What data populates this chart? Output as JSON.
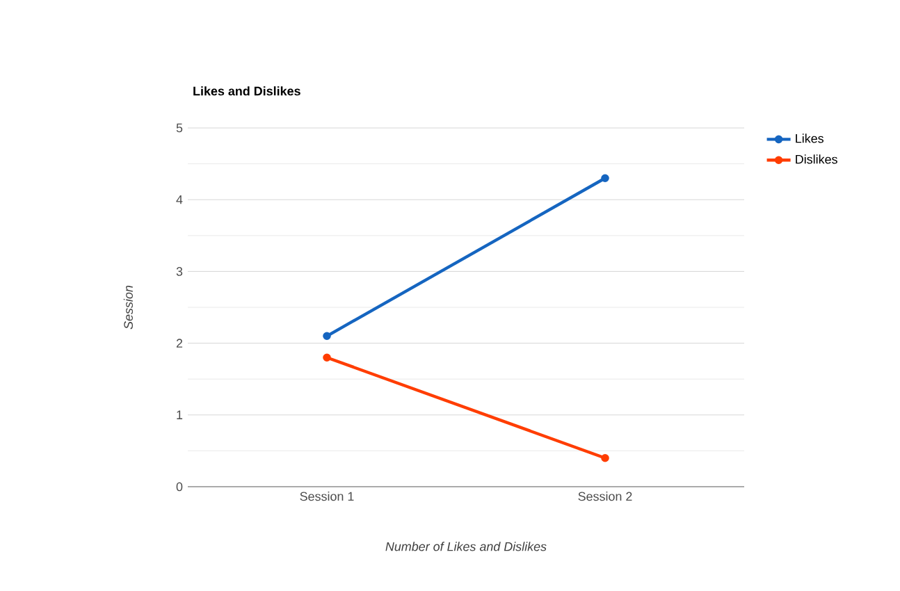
{
  "chart_data": {
    "type": "line",
    "title": "Likes and Dislikes",
    "xlabel": "Number of Likes and Dislikes",
    "ylabel": "Session",
    "categories": [
      "Session 1",
      "Session 2"
    ],
    "series": [
      {
        "name": "Likes",
        "color": "#1565c0",
        "values": [
          2.1,
          4.3
        ]
      },
      {
        "name": "Dislikes",
        "color": "#ff3d00",
        "values": [
          1.8,
          0.4
        ]
      }
    ],
    "ylim": [
      0,
      5
    ],
    "yticks": [
      0,
      1,
      2,
      3,
      4,
      5
    ],
    "grid": "y",
    "legend": "top right",
    "marker": "circle",
    "line_style": "solid"
  }
}
